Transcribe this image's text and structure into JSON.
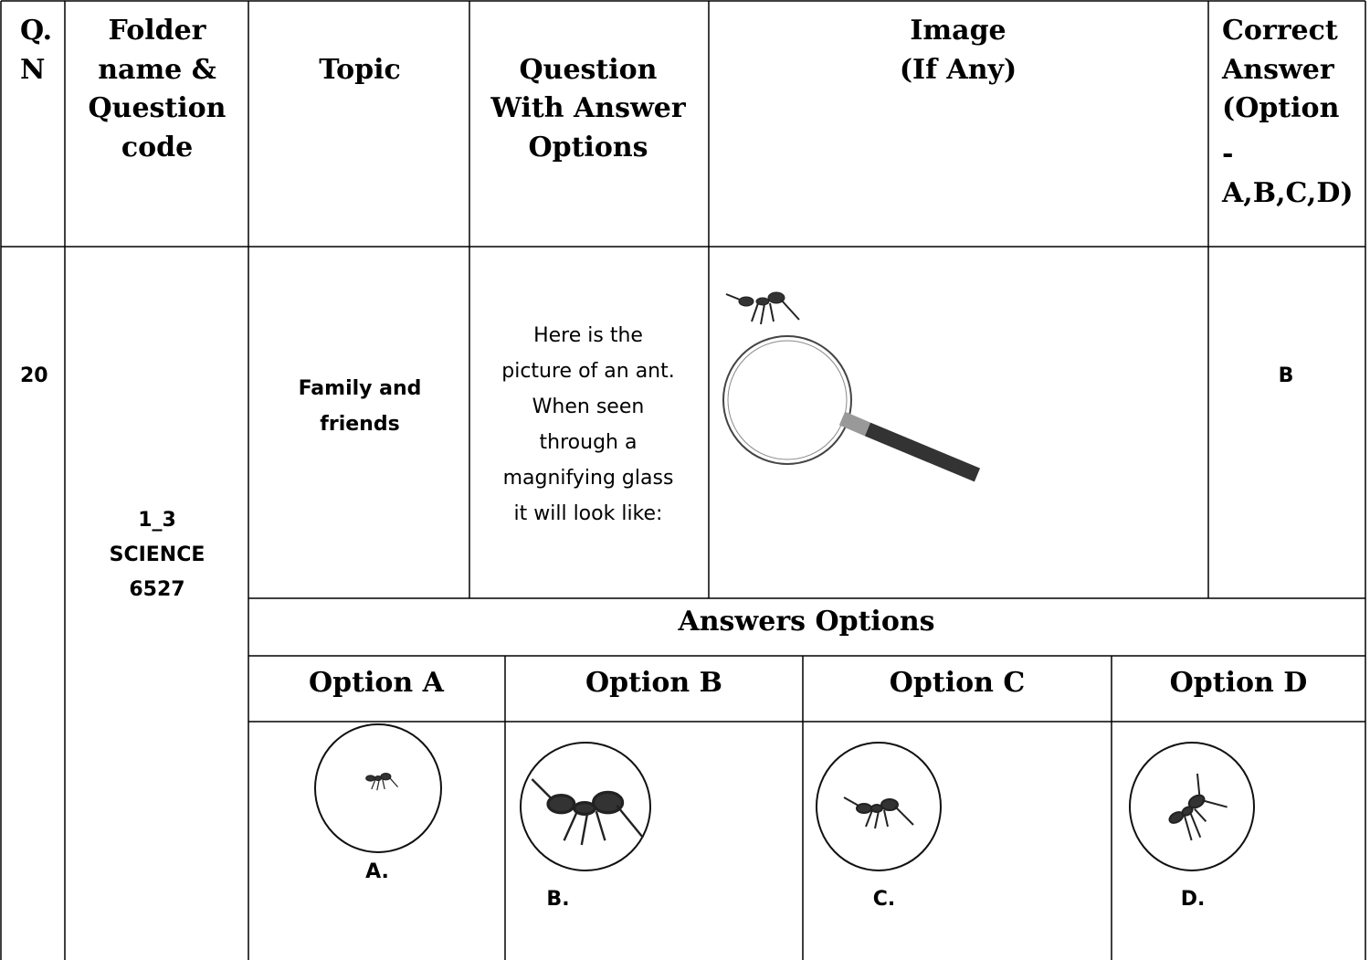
{
  "header": [
    [
      "Q.",
      "N"
    ],
    [
      "Folder",
      "name &",
      "Question",
      "code"
    ],
    [
      "Topic"
    ],
    [
      "Question",
      "With Answer",
      "Options"
    ],
    [
      "Image",
      "(If Any)"
    ],
    [
      "Correct",
      "Answer",
      "(Option",
      "-",
      "A,B,C,D)"
    ]
  ],
  "row": {
    "qn": "20",
    "folder": [
      "1_3",
      "SCIENCE",
      "6527"
    ],
    "topic": [
      "Family and",
      "friends"
    ],
    "question": [
      "Here is the",
      "picture of an ant.",
      "When seen",
      "through a",
      "magnifying glass",
      "it will look like:"
    ],
    "correct": "B"
  },
  "answers_title": "Answers Options",
  "options": [
    {
      "title": "Option A",
      "label": "A."
    },
    {
      "title": "Option B",
      "label": "B."
    },
    {
      "title": "Option C",
      "label": "C."
    },
    {
      "title": "Option D",
      "label": "D."
    }
  ]
}
